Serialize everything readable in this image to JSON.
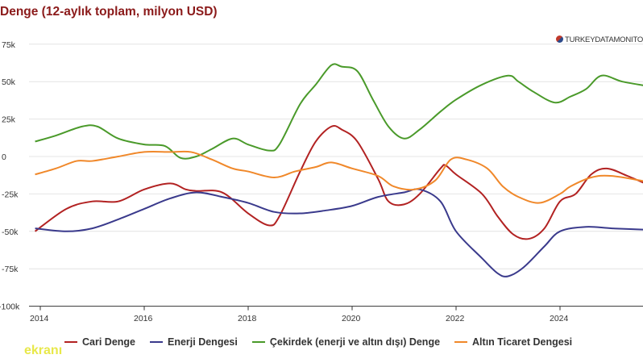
{
  "chart_data": {
    "type": "line",
    "title": "Denge (12-aylık toplam, milyon USD)",
    "source_logo": "TURKEYDATAMONITOR",
    "watermark": "ekranı",
    "ylim": [
      -100000,
      75000
    ],
    "yticks": [
      75000,
      50000,
      25000,
      0,
      -25000,
      -50000,
      -75000,
      -100000
    ],
    "ytick_labels": [
      "75k",
      "50k",
      "25k",
      "0",
      "-25k",
      "-50k",
      "-75k",
      "-100k"
    ],
    "xticks": [
      2014,
      2016,
      2018,
      2020,
      2022,
      2024
    ],
    "xtick_labels": [
      "2014",
      "2016",
      "2018",
      "2020",
      "2022",
      "2024"
    ],
    "xlim": [
      2013.9,
      2025.7
    ],
    "grid": true,
    "legend_position": "bottom",
    "series": [
      {
        "name": "Cari Denge",
        "color": "#b22222",
        "x": [
          2013.9,
          2014.5,
          2015,
          2015.5,
          2016,
          2016.5,
          2016.8,
          2017,
          2017.5,
          2018,
          2018.4,
          2018.6,
          2019,
          2019.3,
          2019.6,
          2019.8,
          2020.1,
          2020.5,
          2020.7,
          2021,
          2021.3,
          2021.7,
          2021.8,
          2022,
          2022.5,
          2022.8,
          2023.1,
          2023.4,
          2023.7,
          2024,
          2024.3,
          2024.6,
          2024.9,
          2025.3,
          2025.7
        ],
        "y": [
          -50000,
          -35000,
          -30000,
          -30000,
          -22000,
          -18000,
          -22000,
          -23000,
          -24000,
          -38000,
          -46000,
          -40000,
          -10000,
          10000,
          20000,
          18000,
          10000,
          -15000,
          -30000,
          -32000,
          -25000,
          -8000,
          -6000,
          -12000,
          -25000,
          -40000,
          -52000,
          -55000,
          -48000,
          -30000,
          -25000,
          -12000,
          -8000,
          -13000,
          -19000
        ]
      },
      {
        "name": "Enerji Dengesi",
        "color": "#3a3a8c",
        "x": [
          2013.9,
          2014.5,
          2015,
          2015.5,
          2016,
          2016.5,
          2017,
          2017.5,
          2018,
          2018.5,
          2019,
          2019.5,
          2020,
          2020.5,
          2021,
          2021.3,
          2021.7,
          2022,
          2022.5,
          2022.8,
          2023,
          2023.3,
          2023.7,
          2024,
          2024.5,
          2025,
          2025.7
        ],
        "y": [
          -48000,
          -50000,
          -48000,
          -42000,
          -35000,
          -28000,
          -24000,
          -27000,
          -31000,
          -37000,
          -38000,
          -36000,
          -33000,
          -27000,
          -24000,
          -22000,
          -30000,
          -50000,
          -68000,
          -78000,
          -80000,
          -74000,
          -60000,
          -50000,
          -47000,
          -48000,
          -49000
        ]
      },
      {
        "name": "Çekirdek (enerji ve altın dışı) Denge",
        "color": "#4a9a2a",
        "x": [
          2013.9,
          2014.3,
          2014.8,
          2015.1,
          2015.5,
          2016,
          2016.4,
          2016.7,
          2017,
          2017.3,
          2017.7,
          2018,
          2018.4,
          2018.6,
          2019,
          2019.3,
          2019.6,
          2019.8,
          2020.1,
          2020.4,
          2020.7,
          2021,
          2021.3,
          2021.7,
          2022,
          2022.5,
          2023,
          2023.2,
          2023.5,
          2023.9,
          2024.2,
          2024.5,
          2024.8,
          2025.2,
          2025.7
        ],
        "y": [
          10000,
          14000,
          20000,
          20000,
          12000,
          8000,
          7000,
          -1000,
          0,
          5000,
          12000,
          8000,
          4000,
          8000,
          35000,
          48000,
          61000,
          60000,
          57000,
          38000,
          20000,
          12000,
          18000,
          30000,
          38000,
          48000,
          54000,
          50000,
          43000,
          36000,
          40000,
          45000,
          54000,
          50000,
          47000
        ]
      },
      {
        "name": "Altın Ticaret Dengesi",
        "color": "#f0882a",
        "x": [
          2013.9,
          2014.3,
          2014.7,
          2015,
          2015.5,
          2016,
          2016.5,
          2016.9,
          2017.3,
          2017.7,
          2018,
          2018.5,
          2018.9,
          2019.3,
          2019.6,
          2020,
          2020.5,
          2020.8,
          2021.2,
          2021.6,
          2021.9,
          2022.2,
          2022.6,
          2022.9,
          2023.2,
          2023.6,
          2024,
          2024.2,
          2024.6,
          2025,
          2025.7
        ],
        "y": [
          -12000,
          -8000,
          -3000,
          -3000,
          0,
          3000,
          3000,
          3000,
          -2000,
          -8000,
          -10000,
          -14000,
          -10000,
          -7000,
          -4000,
          -8000,
          -13000,
          -20000,
          -22000,
          -16000,
          -2000,
          -2000,
          -8000,
          -20000,
          -27000,
          -31000,
          -25000,
          -20000,
          -14000,
          -13000,
          -17000
        ]
      }
    ]
  }
}
